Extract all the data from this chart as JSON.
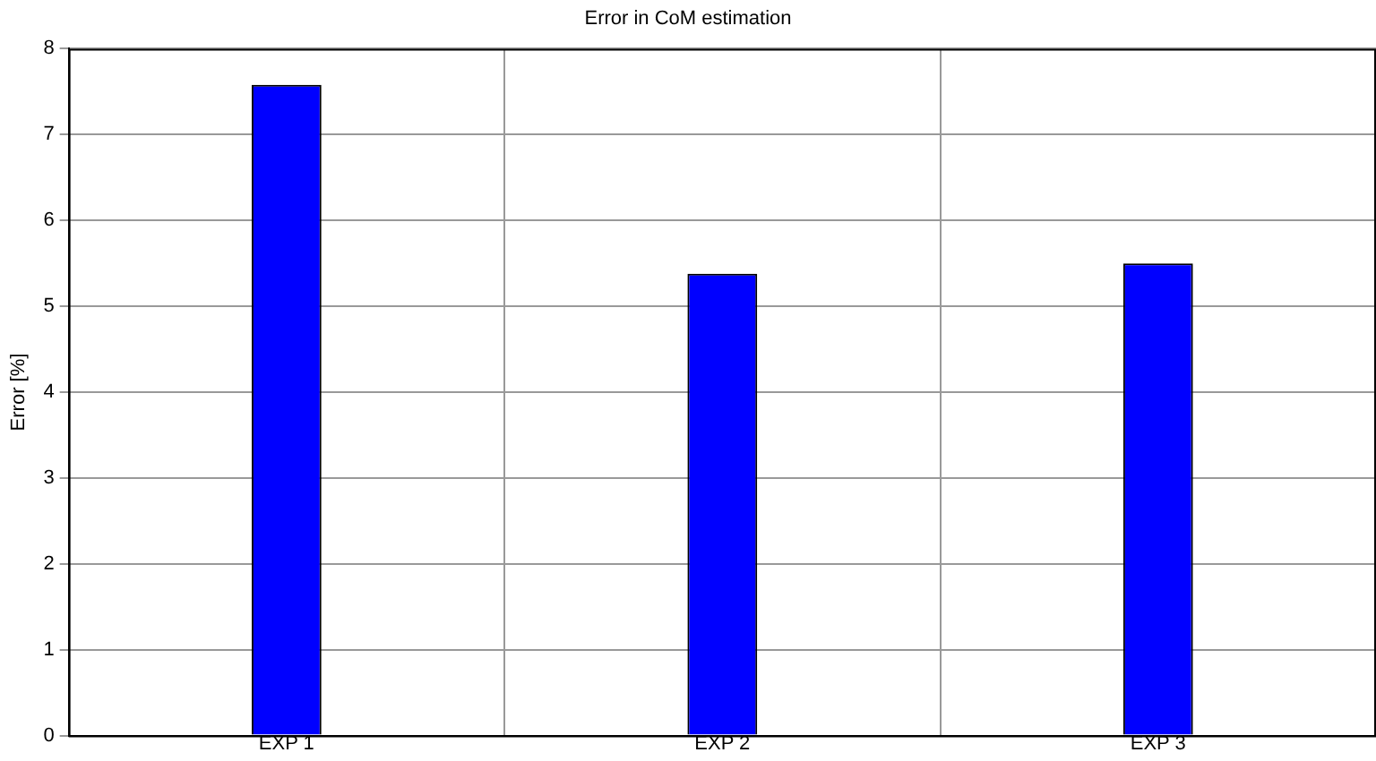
{
  "chart_data": {
    "type": "bar",
    "title": "Error in CoM estimation",
    "ylabel": "Error [%]",
    "categories": [
      "EXP 1",
      "EXP 2",
      "EXP 3"
    ],
    "values": [
      7.58,
      5.38,
      5.5
    ],
    "color": "#0000ff",
    "ylim": [
      0,
      8
    ],
    "yticks": [
      0,
      1,
      2,
      3,
      4,
      5,
      6,
      7,
      8
    ],
    "grid": true
  }
}
